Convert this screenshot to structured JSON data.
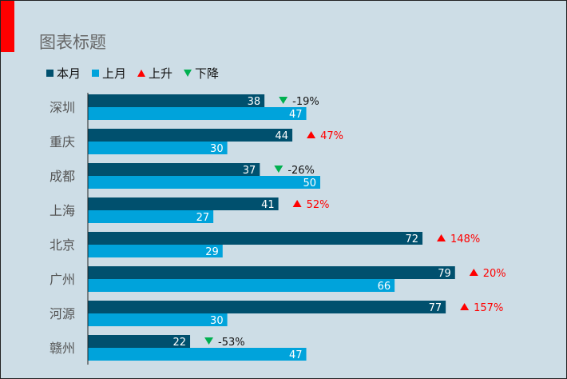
{
  "chart_data": {
    "type": "bar",
    "orientation": "horizontal",
    "title": "图表标题",
    "categories": [
      "深圳",
      "重庆",
      "成都",
      "上海",
      "北京",
      "广州",
      "河源",
      "赣州"
    ],
    "series": [
      {
        "name": "本月",
        "color": "#00506e",
        "values": [
          38,
          44,
          37,
          41,
          72,
          79,
          77,
          22
        ]
      },
      {
        "name": "上月",
        "color": "#00a3db",
        "values": [
          47,
          30,
          50,
          27,
          29,
          66,
          30,
          47
        ]
      }
    ],
    "change_labels": [
      "-19%",
      "47%",
      "-26%",
      "52%",
      "148%",
      "20%",
      "157%",
      "-53%"
    ],
    "change_direction": [
      "down",
      "up",
      "down",
      "up",
      "up",
      "up",
      "up",
      "down"
    ],
    "legend": [
      {
        "label": "本月",
        "marker": "square",
        "color": "#00506e"
      },
      {
        "label": "上月",
        "marker": "square",
        "color": "#00a3db"
      },
      {
        "label": "上升",
        "marker": "triangle-up",
        "color": "#ff0000"
      },
      {
        "label": "下降",
        "marker": "triangle-down",
        "color": "#00b050"
      }
    ],
    "legend_position": "top-left",
    "xlim": [
      0,
      100
    ],
    "grid": false
  }
}
